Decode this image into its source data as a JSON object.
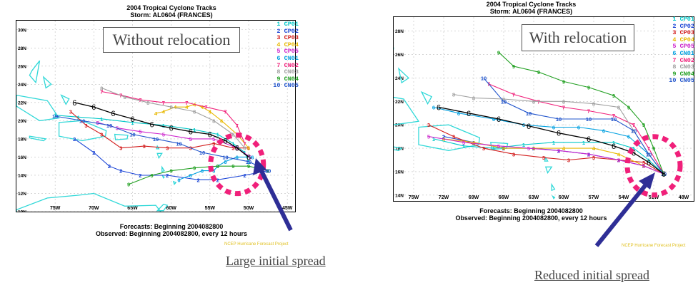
{
  "colors": {
    "CP01": "#00c8c8",
    "CP02": "#1a44d6",
    "CP03": "#d21c1c",
    "CP04": "#e8b800",
    "CP05": "#cc22cc",
    "CN01": "#00a0e0",
    "CN02": "#f0207a",
    "CN03": "#a0a0a0",
    "CN04": "#22a022",
    "CN05": "#2255cc",
    "observed": "#000000",
    "land": "#30d8d8",
    "circle": "#f0207a",
    "arrow": "#2e2e96"
  },
  "panels": [
    {
      "title": "2004 Tropical Cyclone Tracks",
      "storm": "Storm: AL0604 (FRANCES)",
      "label_box": "Without relocation",
      "legend": [
        "1 CP01",
        "2 CP02",
        "3 CP03",
        "4 CP04",
        "5 CP05",
        "6 CN01",
        "7 CN02",
        "8 CN03",
        "9 CN04",
        "10 CN05"
      ],
      "forecasts": "Forecasts: Beginning 2004082800",
      "observed": "Observed: Beginning 2004082800, every 12 hours",
      "credit": "NCEP Hurricane Forecast Project",
      "annotation": "Large initial spread",
      "chart_data": {
        "type": "line",
        "x_ticks": [
          "75W",
          "70W",
          "65W",
          "60W",
          "55W",
          "50W",
          "45W"
        ],
        "y_ticks": [
          "10N",
          "12N",
          "14N",
          "16N",
          "18N",
          "20N",
          "22N",
          "24N",
          "26N",
          "28N",
          "30N"
        ],
        "xlim": [
          -80,
          -44
        ],
        "ylim": [
          10,
          31
        ],
        "series": [
          {
            "name": "CP01",
            "lon": [
              -50.0,
              -50.5,
              -52.0,
              -54.0,
              -57.0,
              -61.0,
              -65.0,
              -69.0,
              -72.0,
              -75.0
            ],
            "lat": [
              15.5,
              16.5,
              17.5,
              18.5,
              19.0,
              19.5,
              19.8,
              20.2,
              20.4,
              20.6
            ]
          },
          {
            "name": "CP02",
            "lon": [
              -47.5,
              -50.5,
              -54.0,
              -56.5,
              -60.5,
              -64.0,
              -66.5,
              -68.0,
              -70.0,
              -72.5
            ],
            "lat": [
              14.5,
              14.0,
              13.5,
              13.5,
              14.0,
              14.0,
              14.5,
              15.0,
              16.5,
              18.0
            ]
          },
          {
            "name": "CP03",
            "lon": [
              -50.0,
              -52.0,
              -54.5,
              -57.5,
              -60.5,
              -63.5,
              -66.5,
              -69.0,
              -71.0,
              -73.0
            ],
            "lat": [
              17.0,
              17.0,
              17.5,
              17.0,
              17.0,
              17.2,
              17.0,
              18.5,
              19.5,
              21.0
            ]
          },
          {
            "name": "CP04",
            "lon": [
              -50.0,
              -51.5,
              -53.5,
              -55.0,
              -56.0,
              -57.0,
              -58.0,
              -59.5,
              -61.0,
              -62.0
            ],
            "lat": [
              17.0,
              18.5,
              20.0,
              21.0,
              21.5,
              21.8,
              21.5,
              21.5,
              21.0,
              20.8
            ]
          },
          {
            "name": "CP05",
            "lon": [
              -49.8,
              -51.5,
              -54.5,
              -57.5,
              -61.0,
              -64.0,
              -67.0,
              -69.5
            ],
            "lat": [
              16.0,
              17.0,
              18.0,
              18.0,
              18.5,
              18.8,
              19.2,
              19.8
            ]
          },
          {
            "name": "CN01",
            "lon": [
              -49.5,
              -51.5,
              -53.0,
              -54.0,
              -54.5,
              -56.0,
              -57.5,
              -59.0
            ],
            "lat": [
              16.0,
              16.0,
              15.5,
              15.0,
              14.5,
              14.5,
              14.0,
              13.5
            ]
          },
          {
            "name": "CN02",
            "lon": [
              -50.5,
              -51.5,
              -53.0,
              -55.5,
              -58.0,
              -61.0,
              -64.0,
              -66.5,
              -69.0
            ],
            "lat": [
              17.5,
              19.5,
              21.0,
              21.5,
              22.0,
              22.0,
              22.3,
              22.8,
              23.2
            ]
          },
          {
            "name": "CN03",
            "lon": [
              -50.5,
              -52.0,
              -54.5,
              -57.0,
              -60.0,
              -63.0,
              -66.0,
              -69.0
            ],
            "lat": [
              17.0,
              18.5,
              20.0,
              21.0,
              21.5,
              22.0,
              22.6,
              23.6
            ]
          },
          {
            "name": "CN04",
            "lon": [
              -47.5,
              -50.0,
              -52.0,
              -54.0,
              -57.0,
              -60.0,
              -62.5,
              -65.5
            ],
            "lat": [
              14.5,
              15.0,
              15.0,
              15.0,
              14.8,
              14.5,
              14.0,
              13.0
            ]
          },
          {
            "name": "CN05",
            "lon": [
              -47.5,
              -50.0,
              -53.0,
              -56.0,
              -59.0,
              -62.0,
              -65.0,
              -68.0,
              -71.5,
              -75.0
            ],
            "lat": [
              14.5,
              15.5,
              16.0,
              16.5,
              17.5,
              18.0,
              18.5,
              19.5,
              20.0,
              20.5
            ]
          },
          {
            "name": "observed",
            "lon": [
              -50.0,
              -51.5,
              -53.0,
              -55.0,
              -57.5,
              -60.0,
              -62.5,
              -65.0,
              -67.5,
              -70.0,
              -72.5
            ],
            "lat": [
              16.0,
              17.0,
              17.8,
              18.5,
              18.8,
              19.2,
              19.6,
              20.2,
              20.8,
              21.5,
              22.0
            ]
          }
        ],
        "circle": {
          "lon": -51.5,
          "lat": 15.2
        }
      }
    },
    {
      "title": "2004 Tropical Cyclone Tracks",
      "storm": "Storm: AL0604 (FRANCES)",
      "label_box": "With relocation",
      "legend": [
        "1 CP01",
        "2 CP02",
        "3 CP03",
        "4 CP04",
        "5 CP05",
        "6 CN01",
        "7 CN02",
        "8 CN03",
        "9 CN04",
        "10 CN05"
      ],
      "forecasts": "Forecasts: Beginning 2004082800",
      "observed": "Observed: Beginning 2004082800, every 12 hours",
      "credit": "NCEP Hurricane Forecast Project",
      "annotation": "Reduced initial spread",
      "chart_data": {
        "type": "line",
        "x_ticks": [
          "75W",
          "72W",
          "69W",
          "66W",
          "63W",
          "60W",
          "57W",
          "54W",
          "51W",
          "48W"
        ],
        "y_ticks": [
          "14N",
          "16N",
          "18N",
          "20N",
          "22N",
          "24N",
          "26N",
          "28N"
        ],
        "xlim": [
          -77,
          -47
        ],
        "ylim": [
          13.5,
          29.2
        ],
        "series": [
          {
            "name": "CP01",
            "lon": [
              -50.0,
              -51.5,
              -53.0,
              -55.0,
              -58.0,
              -61.0,
              -64.0,
              -67.0,
              -70.0,
              -73.0
            ],
            "lat": [
              15.8,
              17.0,
              18.0,
              18.5,
              18.5,
              18.5,
              18.3,
              18.0,
              18.2,
              18.8
            ]
          },
          {
            "name": "CP02",
            "lon": [
              -50.0,
              -52.0,
              -54.5,
              -57.5,
              -60.5,
              -63.0,
              -66.0,
              -69.0,
              -72.0
            ],
            "lat": [
              15.8,
              16.5,
              17.0,
              17.5,
              17.8,
              18.0,
              18.0,
              18.5,
              19.0
            ]
          },
          {
            "name": "CP03",
            "lon": [
              -50.0,
              -52.0,
              -54.5,
              -57.0,
              -59.5,
              -62.0,
              -65.0,
              -68.0,
              -71.0,
              -73.5
            ],
            "lat": [
              15.8,
              16.8,
              17.0,
              17.2,
              17.0,
              17.2,
              17.5,
              18.0,
              19.0,
              20.0
            ]
          },
          {
            "name": "CP04",
            "lon": [
              -50.0,
              -52.0,
              -54.5,
              -57.0,
              -60.0,
              -63.0,
              -66.0,
              -69.0,
              -72.0
            ],
            "lat": [
              15.8,
              16.5,
              17.5,
              18.0,
              18.0,
              18.0,
              18.0,
              18.5,
              18.8
            ]
          },
          {
            "name": "CP05",
            "lon": [
              -50.0,
              -52.0,
              -54.5,
              -57.5,
              -60.5,
              -63.5,
              -66.5,
              -70.0,
              -73.5
            ],
            "lat": [
              15.8,
              16.5,
              17.0,
              17.5,
              17.8,
              18.0,
              18.2,
              18.5,
              19.0
            ]
          },
          {
            "name": "CN01",
            "lon": [
              -50.0,
              -51.5,
              -53.5,
              -56.0,
              -58.5,
              -61.0,
              -64.0,
              -67.0,
              -70.5,
              -73.0
            ],
            "lat": [
              15.8,
              17.5,
              19.0,
              19.5,
              19.8,
              19.8,
              20.0,
              20.5,
              21.0,
              21.5
            ]
          },
          {
            "name": "CN02",
            "lon": [
              -50.0,
              -51.5,
              -53.0,
              -55.0,
              -57.5,
              -60.0,
              -62.5,
              -65.0,
              -67.5
            ],
            "lat": [
              15.8,
              18.0,
              20.0,
              20.8,
              21.2,
              21.5,
              22.0,
              22.6,
              23.5
            ]
          },
          {
            "name": "CN03",
            "lon": [
              -50.0,
              -51.5,
              -53.0,
              -54.5,
              -57.0,
              -60.0,
              -63.0,
              -66.0,
              -69.0,
              -71.0
            ],
            "lat": [
              15.8,
              17.5,
              19.5,
              21.5,
              21.8,
              22.0,
              22.0,
              22.2,
              22.3,
              22.6
            ]
          },
          {
            "name": "CN04",
            "lon": [
              -50.0,
              -51.0,
              -52.0,
              -53.5,
              -55.0,
              -57.5,
              -60.0,
              -62.5,
              -65.0,
              -66.5
            ],
            "lat": [
              15.8,
              18.0,
              20.0,
              21.5,
              22.5,
              23.2,
              23.7,
              24.5,
              25.0,
              26.2
            ]
          },
          {
            "name": "CN05",
            "lon": [
              -50.0,
              -51.5,
              -53.0,
              -55.0,
              -57.5,
              -60.5,
              -63.5,
              -66.0,
              -68.0
            ],
            "lat": [
              15.8,
              17.5,
              19.5,
              20.5,
              20.5,
              20.5,
              21.0,
              22.0,
              24.0
            ]
          },
          {
            "name": "observed",
            "lon": [
              -50.0,
              -51.5,
              -53.0,
              -55.0,
              -57.5,
              -60.5,
              -63.5,
              -66.5,
              -69.5,
              -72.5
            ],
            "lat": [
              15.8,
              16.8,
              17.6,
              18.2,
              18.8,
              19.3,
              19.9,
              20.5,
              21.0,
              21.5
            ]
          }
        ],
        "circle": {
          "lon": -51.0,
          "lat": 16.5
        }
      }
    }
  ]
}
